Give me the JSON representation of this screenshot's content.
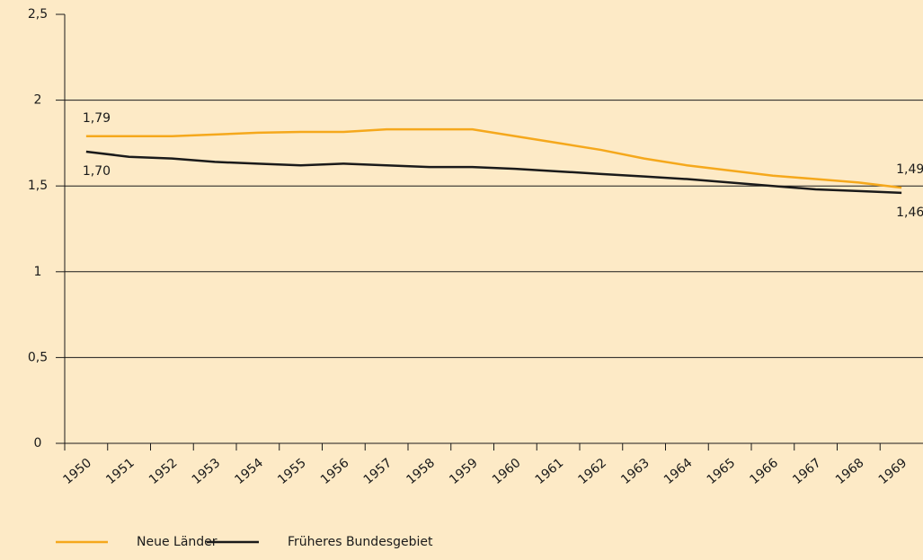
{
  "chart_data": {
    "type": "line",
    "categories": [
      "1950",
      "1951",
      "1952",
      "1953",
      "1954",
      "1955",
      "1956",
      "1957",
      "1958",
      "1959",
      "1960",
      "1961",
      "1962",
      "1963",
      "1964",
      "1965",
      "1966",
      "1967",
      "1968",
      "1969"
    ],
    "series": [
      {
        "name": "Neue Länder",
        "color": "#f5a81c",
        "values": [
          1.79,
          1.79,
          1.79,
          1.8,
          1.81,
          1.815,
          1.815,
          1.83,
          1.83,
          1.83,
          1.79,
          1.75,
          1.71,
          1.66,
          1.62,
          1.59,
          1.56,
          1.54,
          1.52,
          1.49
        ],
        "value_labels": [
          "1,79",
          null,
          null,
          null,
          null,
          null,
          null,
          null,
          null,
          null,
          null,
          null,
          null,
          null,
          null,
          null,
          null,
          null,
          null,
          "1,49"
        ]
      },
      {
        "name": "Früheres Bundesgebiet",
        "color": "#1a1a1a",
        "values": [
          1.7,
          1.67,
          1.66,
          1.64,
          1.63,
          1.62,
          1.63,
          1.62,
          1.61,
          1.61,
          1.6,
          1.585,
          1.57,
          1.555,
          1.54,
          1.52,
          1.5,
          1.48,
          1.47,
          1.46
        ],
        "value_labels": [
          "1,70",
          null,
          null,
          null,
          null,
          null,
          null,
          null,
          null,
          null,
          null,
          null,
          null,
          null,
          null,
          null,
          null,
          null,
          null,
          "1,46"
        ]
      }
    ],
    "ylim": [
      0,
      2.5
    ],
    "yticks": [
      0,
      {
        "value": 0.5,
        "label": "0,5"
      },
      1,
      {
        "value": 1.5,
        "label": "1,5"
      },
      2,
      {
        "value": 2.5,
        "label": "2,5"
      }
    ],
    "grid": true,
    "legend": "bottom"
  }
}
